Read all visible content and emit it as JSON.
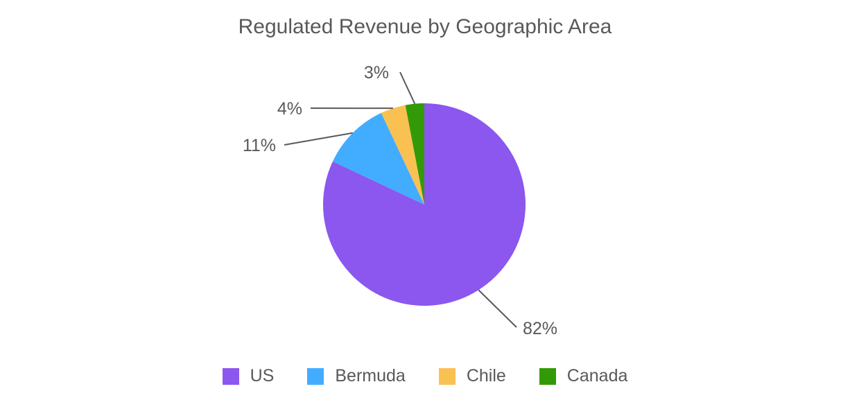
{
  "chart_data": {
    "type": "pie",
    "title": "Regulated Revenue by Geographic Area",
    "categories": [
      "US",
      "Bermuda",
      "Chile",
      "Canada"
    ],
    "values": [
      82,
      11,
      4,
      3
    ],
    "labels": [
      "82%",
      "11%",
      "4%",
      "3%"
    ],
    "colors": [
      "#8b57ee",
      "#42adff",
      "#f9c152",
      "#339a07"
    ],
    "legend_position": "bottom",
    "start_angle": "12 o'clock, clockwise"
  },
  "title": "Regulated Revenue by Geographic Area",
  "legend": [
    {
      "label": "US",
      "color": "#8b57ee"
    },
    {
      "label": "Bermuda",
      "color": "#42adff"
    },
    {
      "label": "Chile",
      "color": "#f9c152"
    },
    {
      "label": "Canada",
      "color": "#339a07"
    }
  ]
}
